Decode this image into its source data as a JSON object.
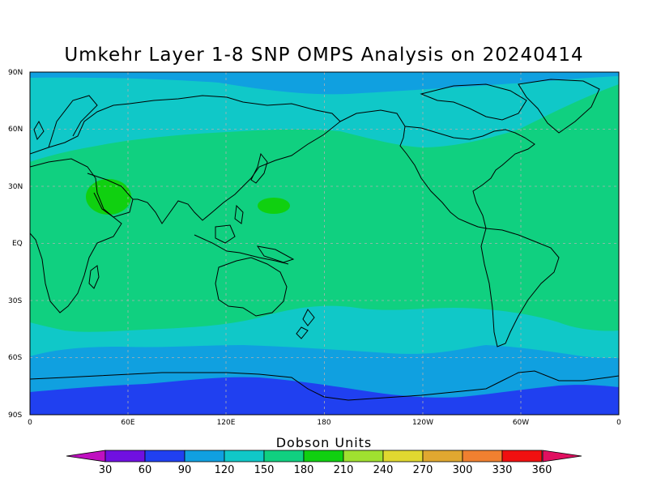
{
  "title": "Umkehr Layer 1-8 SNP OMPS Analysis on 20240414",
  "colorbar": {
    "title": "Dobson Units",
    "levels": [
      "30",
      "60",
      "90",
      "120",
      "150",
      "180",
      "210",
      "240",
      "270",
      "300",
      "330",
      "360"
    ],
    "colors": [
      "#c010c0",
      "#7010e0",
      "#2040f0",
      "#10a0e0",
      "#10c8c8",
      "#10d080",
      "#10d010",
      "#a0e030",
      "#e0d830",
      "#e0a830",
      "#f08030",
      "#f01010",
      "#e01060"
    ]
  },
  "axes": {
    "lat_labels": [
      "90N",
      "60N",
      "30N",
      "EQ",
      "30S",
      "60S",
      "90S"
    ],
    "lon_labels": [
      "0",
      "60E",
      "120E",
      "180",
      "120W",
      "60W",
      "0"
    ]
  },
  "field_colors": {
    "band_180": "#10d080",
    "band_150": "#10c8c8",
    "band_120": "#10a0e0",
    "band_90": "#2040f0",
    "band_210": "#10d010"
  }
}
